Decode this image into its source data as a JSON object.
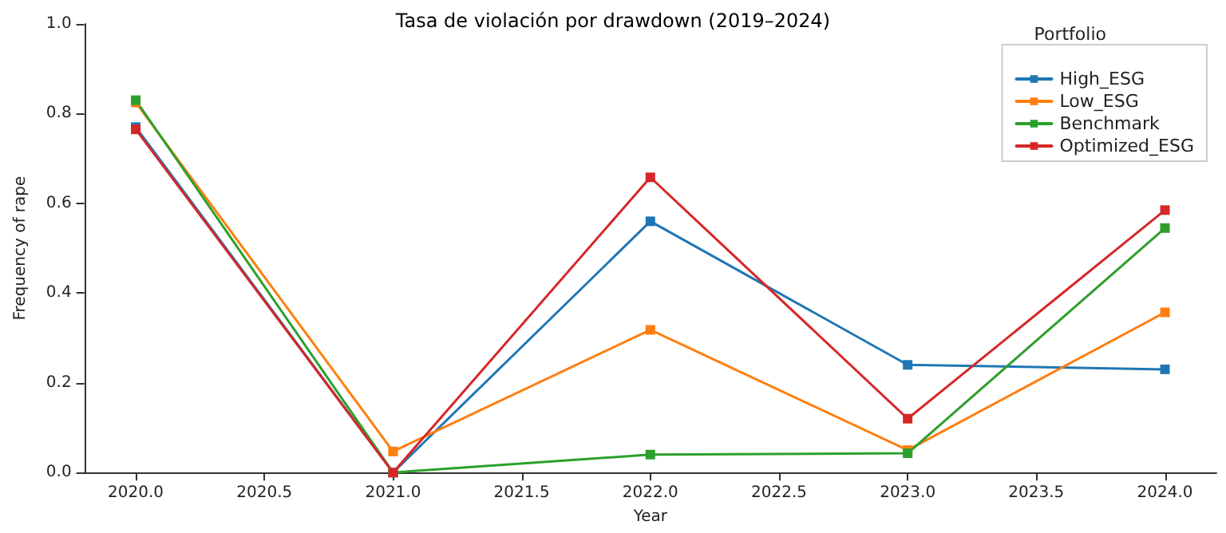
{
  "chart_data": {
    "type": "line",
    "title": "Tasa de violación por drawdown (2019–2024)",
    "xlabel": "Year",
    "ylabel": "Frequency of rape",
    "legend_title": "Portfolio",
    "x": [
      2020,
      2021,
      2022,
      2023,
      2024
    ],
    "series": [
      {
        "name": "High_ESG",
        "color": "#1f77b4",
        "values": [
          0.77,
          0,
          0.56,
          0.24,
          0.23
        ]
      },
      {
        "name": "Low_ESG",
        "color": "#ff7f0e",
        "values": [
          0.825,
          0.047,
          0.318,
          0.05,
          0.357
        ]
      },
      {
        "name": "Benchmark",
        "color": "#2ca02c",
        "values": [
          0.83,
          0,
          0.04,
          0.043,
          0.545
        ]
      },
      {
        "name": "Optimized_ESG",
        "color": "#d62728",
        "values": [
          0.765,
          0,
          0.658,
          0.12,
          0.585
        ]
      }
    ],
    "xlim": [
      2019.8,
      2024.2
    ],
    "xticks": [
      {
        "value": 2020,
        "label": "2020.0"
      },
      {
        "value": 2020.5,
        "label": "2020.5"
      },
      {
        "value": 2021,
        "label": "2021.0"
      },
      {
        "value": 2021.5,
        "label": "2021.5"
      },
      {
        "value": 2022,
        "label": "2022.0"
      },
      {
        "value": 2022.5,
        "label": "2022.5"
      },
      {
        "value": 2023,
        "label": "2023.0"
      },
      {
        "value": 2023.5,
        "label": "2023.5"
      },
      {
        "value": 2024,
        "label": "2024.0"
      }
    ],
    "ylim": [
      0,
      1
    ],
    "yticks": [
      {
        "value": 0,
        "label": "0.0"
      },
      {
        "value": 0.2,
        "label": "0.2"
      },
      {
        "value": 0.4,
        "label": "0.4"
      },
      {
        "value": 0.6,
        "label": "0.6"
      },
      {
        "value": 0.8,
        "label": "0.8"
      },
      {
        "value": 1,
        "label": "1.0"
      }
    ],
    "grid": false,
    "legend": "top right",
    "marker": "square",
    "line_style": "solid"
  }
}
